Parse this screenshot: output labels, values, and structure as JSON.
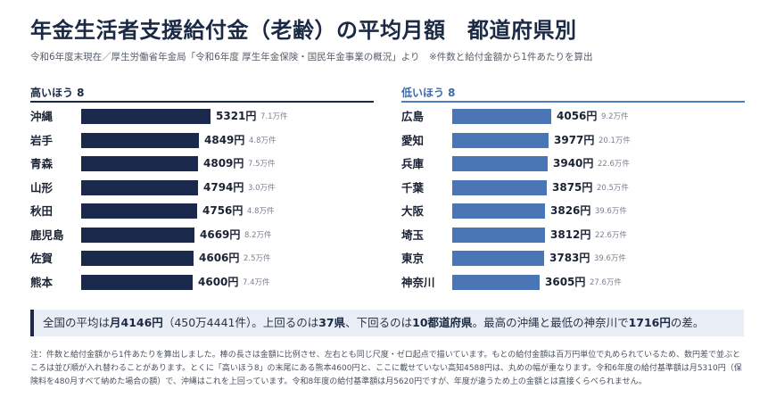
{
  "title": "年金生活者支援給付金（老齢）の平均月額　都道府県別",
  "subtitle": "令和6年度末現在／厚生労働省年金局「令和6年度 厚生年金保険・国民年金事業の概況」より　※件数と給付金額から1件あたりを算出",
  "colors": {
    "high_bar": "#1b2a4c",
    "low_bar": "#4a76b6",
    "summary_bg": "#e9eef6"
  },
  "chart_data": [
    {
      "type": "bar",
      "orientation": "horizontal",
      "title": "高いほう 8",
      "categories": [
        "沖縄",
        "岩手",
        "青森",
        "山形",
        "秋田",
        "鹿児島",
        "佐賀",
        "熊本"
      ],
      "values": [
        5321,
        4849,
        4809,
        4794,
        4756,
        4669,
        4606,
        4600
      ],
      "value_labels": [
        "5321円",
        "4849円",
        "4809円",
        "4794円",
        "4756円",
        "4669円",
        "4606円",
        "4600円"
      ],
      "count_labels": [
        "7.1万件",
        "4.8万件",
        "7.5万件",
        "3.0万件",
        "4.8万件",
        "8.2万件",
        "2.5万件",
        "7.4万件"
      ],
      "xlim": [
        0,
        5321
      ],
      "grid": false
    },
    {
      "type": "bar",
      "orientation": "horizontal",
      "title": "低いほう 8",
      "categories": [
        "広島",
        "愛知",
        "兵庫",
        "千葉",
        "大阪",
        "埼玉",
        "東京",
        "神奈川"
      ],
      "values": [
        4056,
        3977,
        3940,
        3875,
        3826,
        3812,
        3783,
        3605
      ],
      "value_labels": [
        "4056円",
        "3977円",
        "3940円",
        "3875円",
        "3826円",
        "3812円",
        "3783円",
        "3605円"
      ],
      "count_labels": [
        "9.2万件",
        "20.1万件",
        "22.6万件",
        "20.5万件",
        "39.6万件",
        "22.6万件",
        "39.6万件",
        "27.6万件"
      ],
      "xlim": [
        0,
        5321
      ],
      "grid": false
    }
  ],
  "summary": {
    "t1": "全国の平均は",
    "b1": "月4146円",
    "t2": "（450万4441件）。上回るのは",
    "b2": "37県",
    "t3": "、下回るのは",
    "b3": "10都道府県",
    "t4": "。最高の沖縄と最低の神奈川で",
    "b4": "1716円",
    "t5": "の差。"
  },
  "note": "注：件数と給付金額から1件あたりを算出しました。棒の長さは金額に比例させ、左右とも同じ尺度・ゼロ起点で描いています。もとの給付金額は百万円単位で丸められているため、数円差で並ぶところは並び順が入れ替わることがあります。とくに「高いほう8」の末尾にある熊本4600円と、ここに載せていない高知4588円は、丸めの幅が重なります。令和6年度の給付基準額は月5310円（保険料を480月すべて納めた場合の額）で、沖縄はこれを上回っています。令和8年度の給付基準額は月5620円ですが、年度が違うため上の金額とは直接くらべられません。"
}
